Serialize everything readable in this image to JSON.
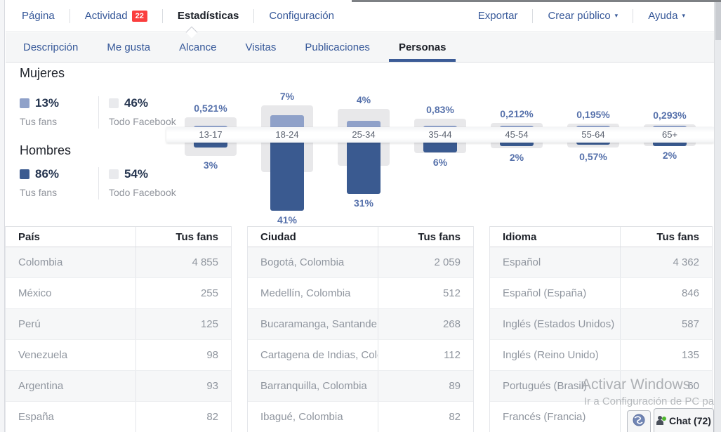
{
  "topnav": {
    "items": [
      {
        "label": "Página",
        "active": false,
        "badge": null
      },
      {
        "label": "Actividad",
        "active": false,
        "badge": "22"
      },
      {
        "label": "Estadísticas",
        "active": true,
        "badge": null
      },
      {
        "label": "Configuración",
        "active": false,
        "badge": null
      }
    ],
    "right_items": [
      {
        "label": "Exportar",
        "dropdown": false
      },
      {
        "label": "Crear público",
        "dropdown": true
      },
      {
        "label": "Ayuda",
        "dropdown": true
      }
    ]
  },
  "subnav": {
    "items": [
      {
        "label": "Descripción",
        "active": false
      },
      {
        "label": "Me gusta",
        "active": false
      },
      {
        "label": "Alcance",
        "active": false
      },
      {
        "label": "Visitas",
        "active": false
      },
      {
        "label": "Publicaciones",
        "active": false
      },
      {
        "label": "Personas",
        "active": true
      }
    ]
  },
  "demographics": {
    "women": {
      "title": "Mujeres",
      "fans_pct": "13%",
      "fans_label": "Tus fans",
      "fb_pct": "46%",
      "fb_label": "Todo Facebook"
    },
    "men": {
      "title": "Hombres",
      "fans_pct": "86%",
      "fans_label": "Tus fans",
      "fb_pct": "54%",
      "fb_label": "Todo Facebook"
    }
  },
  "chart_data": {
    "type": "bar",
    "orientation": "diverging-vertical",
    "categories": [
      "13-17",
      "18-24",
      "25-34",
      "35-44",
      "45-54",
      "55-64",
      "65+"
    ],
    "series": [
      {
        "name": "Tus fans - Mujeres",
        "values": [
          0.521,
          7,
          4,
          0.83,
          0.212,
          0.195,
          0.293
        ],
        "labels": [
          "0,521%",
          "7%",
          "4%",
          "0,83%",
          "0,212%",
          "0,195%",
          "0,293%"
        ],
        "color": "#8fa1c9"
      },
      {
        "name": "Tus fans - Hombres",
        "values": [
          3,
          41,
          31,
          6,
          2,
          0.57,
          2
        ],
        "labels": [
          "3%",
          "41%",
          "31%",
          "6%",
          "2%",
          "0,57%",
          "2%"
        ],
        "color": "#3a5a90"
      },
      {
        "name": "Todo Facebook - Mujeres (estimado, sin etiqueta)",
        "values": [
          6,
          13,
          11,
          5,
          2.5,
          2,
          1.5
        ],
        "color": "#e8e8ea"
      },
      {
        "name": "Todo Facebook - Hombres (estimado, sin etiqueta)",
        "values": [
          8,
          18,
          14,
          6.5,
          3.5,
          3,
          2
        ],
        "color": "#e8e8ea"
      }
    ],
    "legend": {
      "women_fans": "13%",
      "women_all_facebook": "46%",
      "men_fans": "86%",
      "men_all_facebook": "54%"
    },
    "legend_position": "left",
    "grid": false
  },
  "tables": [
    {
      "header": [
        "País",
        "Tus fans"
      ],
      "rows": [
        [
          "Colombia",
          "4 855"
        ],
        [
          "México",
          "255"
        ],
        [
          "Perú",
          "125"
        ],
        [
          "Venezuela",
          "98"
        ],
        [
          "Argentina",
          "93"
        ],
        [
          "España",
          "82"
        ]
      ]
    },
    {
      "header": [
        "Ciudad",
        "Tus fans"
      ],
      "rows": [
        [
          "Bogotá, Colombia",
          "2 059"
        ],
        [
          "Medellín, Colombia",
          "512"
        ],
        [
          "Bucaramanga, Santander (...",
          "268"
        ],
        [
          "Cartagena de Indias, Colo...",
          "112"
        ],
        [
          "Barranquilla, Colombia",
          "89"
        ],
        [
          "Ibagué, Colombia",
          "82"
        ]
      ]
    },
    {
      "header": [
        "Idioma",
        "Tus fans"
      ],
      "rows": [
        [
          "Español",
          "4 362"
        ],
        [
          "Español (España)",
          "846"
        ],
        [
          "Inglés (Estados Unidos)",
          "587"
        ],
        [
          "Inglés (Reino Unido)",
          "135"
        ],
        [
          "Portugués (Brasil)",
          "60"
        ],
        [
          "Francés (Francia)",
          ""
        ]
      ]
    }
  ],
  "overlay": {
    "watermark_line1": "Activar Windows",
    "watermark_line2": "Ir a Configuración de PC para",
    "chat_label": "Chat (72)"
  },
  "icons": {
    "dropdown_caret": "▾"
  },
  "colors": {
    "link_blue": "#365899",
    "active_text": "#1d2129",
    "badge_red": "#fa3e3e",
    "bar_men": "#3a5a90",
    "bar_women": "#8fa1c9",
    "bar_all_facebook": "#e8e8ea",
    "value_label": "#5671ab",
    "active_tab_underline": "#3b5b96"
  }
}
